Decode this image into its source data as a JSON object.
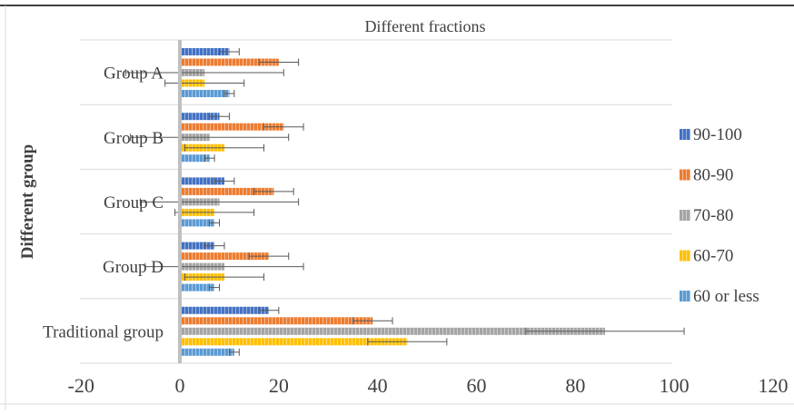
{
  "chart_data": {
    "type": "bar",
    "orientation": "horizontal",
    "title": "Different fractions",
    "xlabel": "",
    "ylabel": "Different group",
    "xlim": [
      -20,
      120
    ],
    "xticks": [
      "-20",
      "0",
      "20",
      "40",
      "60",
      "80",
      "100",
      "120"
    ],
    "categories": [
      "Group A",
      "Group B",
      "Group C",
      "Group D",
      "Traditional group"
    ],
    "legend_position": "right",
    "grid": true,
    "series": [
      {
        "name": "90-100",
        "color": "#4472C4",
        "values": [
          10,
          8,
          9,
          7,
          18
        ],
        "errors": [
          2,
          2,
          2,
          2,
          2
        ]
      },
      {
        "name": "80-90",
        "color": "#ED7D31",
        "values": [
          20,
          21,
          19,
          18,
          39
        ],
        "errors": [
          4,
          4,
          4,
          4,
          4
        ]
      },
      {
        "name": "70-80",
        "color": "#A5A5A5",
        "values": [
          5,
          6,
          8,
          9,
          86
        ],
        "errors": [
          16,
          16,
          16,
          16,
          16
        ]
      },
      {
        "name": "60-70",
        "color": "#FFC000",
        "values": [
          5,
          9,
          7,
          9,
          46
        ],
        "errors": [
          8,
          8,
          8,
          8,
          8
        ]
      },
      {
        "name": "60 or less",
        "color": "#5B9BD5",
        "values": [
          10,
          6,
          7,
          7,
          11
        ],
        "errors": [
          1,
          1,
          1,
          1,
          1
        ]
      }
    ]
  }
}
